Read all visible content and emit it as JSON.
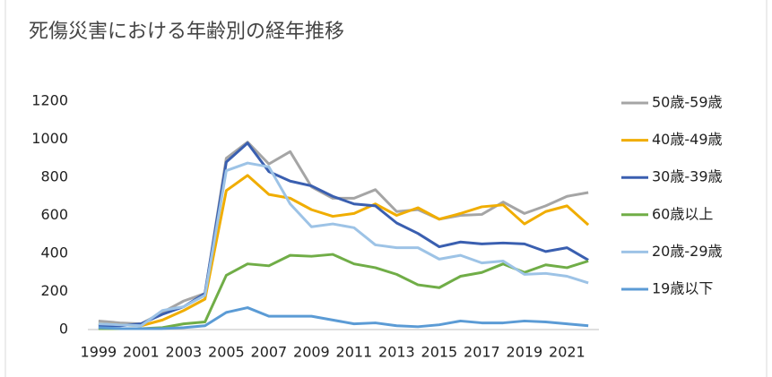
{
  "chart_data": {
    "type": "line",
    "title": "死傷災害における年齢別の経年推移",
    "categories": [
      "1999",
      null,
      "2001",
      null,
      "2003",
      null,
      "2005",
      null,
      "2007",
      null,
      "2009",
      null,
      "2011",
      null,
      "2013",
      null,
      "2015",
      null,
      "2017",
      null,
      "2019",
      null,
      "2021",
      null
    ],
    "series": [
      {
        "name": "50歳-59歳",
        "color": "#a5a5a5",
        "values": [
          45,
          35,
          30,
          90,
          150,
          190,
          900,
          985,
          870,
          935,
          750,
          690,
          690,
          735,
          620,
          630,
          580,
          600,
          605,
          670,
          610,
          650,
          700,
          720
        ]
      },
      {
        "name": "40歳-49歳",
        "color": "#f0ad00",
        "values": [
          30,
          25,
          20,
          50,
          100,
          160,
          730,
          810,
          710,
          690,
          630,
          595,
          610,
          660,
          600,
          640,
          580,
          610,
          645,
          655,
          555,
          620,
          650,
          550
        ]
      },
      {
        "name": "30歳-39歳",
        "color": "#3a5fb0",
        "values": [
          20,
          20,
          30,
          80,
          120,
          190,
          880,
          980,
          830,
          780,
          755,
          700,
          660,
          650,
          560,
          505,
          435,
          460,
          450,
          455,
          450,
          410,
          430,
          365
        ]
      },
      {
        "name": "60歳以上",
        "color": "#70ad47",
        "values": [
          5,
          5,
          5,
          10,
          30,
          40,
          285,
          345,
          335,
          390,
          385,
          395,
          345,
          325,
          290,
          235,
          220,
          280,
          300,
          345,
          300,
          340,
          325,
          360
        ]
      },
      {
        "name": "20歳-29歳",
        "color": "#9dc3e6",
        "values": [
          30,
          25,
          20,
          100,
          120,
          180,
          835,
          875,
          855,
          660,
          540,
          555,
          535,
          445,
          430,
          430,
          370,
          390,
          350,
          360,
          290,
          295,
          280,
          245
        ]
      },
      {
        "name": "19歳以下",
        "color": "#5b9bd5",
        "values": [
          10,
          5,
          5,
          5,
          10,
          20,
          90,
          115,
          70,
          70,
          70,
          50,
          30,
          35,
          20,
          15,
          25,
          45,
          35,
          35,
          45,
          40,
          30,
          20
        ]
      }
    ],
    "ylim": [
      0,
      1200
    ],
    "yticks": [
      0,
      200,
      400,
      600,
      800,
      1000,
      1200
    ],
    "grid": false,
    "legend": "right"
  }
}
